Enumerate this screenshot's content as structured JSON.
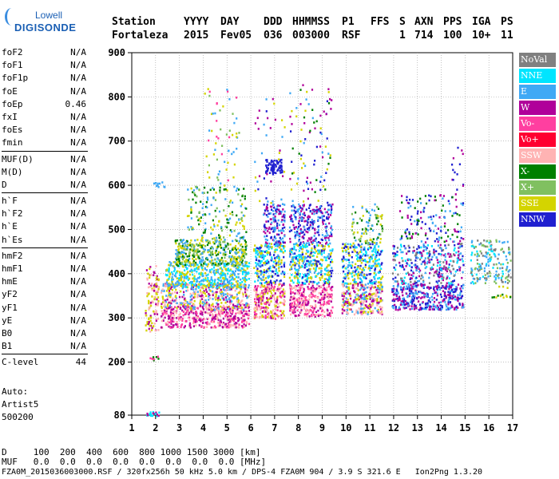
{
  "logo": {
    "line1": "Lowell",
    "line2": "DIGISONDE"
  },
  "header": {
    "labels": [
      "Station",
      "YYYY",
      "DAY",
      "DDD",
      "HHMMSS",
      "P1",
      "FFS",
      "S",
      "AXN",
      "PPS",
      "IGA",
      "PS"
    ],
    "values": [
      "Fortaleza",
      "2015",
      "Fev05",
      "036",
      "003000",
      "RSF",
      "1",
      "714",
      "100",
      "10+",
      "11"
    ]
  },
  "params": {
    "group1": [
      {
        "name": "foF2",
        "value": "N/A"
      },
      {
        "name": "foF1",
        "value": "N/A"
      },
      {
        "name": "foF1p",
        "value": "N/A"
      },
      {
        "name": "foE",
        "value": "N/A"
      },
      {
        "name": "foEp",
        "value": "0.46"
      },
      {
        "name": "fxI",
        "value": "N/A"
      },
      {
        "name": "foEs",
        "value": "N/A"
      },
      {
        "name": "fmin",
        "value": "N/A"
      }
    ],
    "group2": [
      {
        "name": "MUF(D)",
        "value": "N/A"
      },
      {
        "name": "M(D)",
        "value": "N/A"
      },
      {
        "name": "D",
        "value": "N/A"
      }
    ],
    "group3": [
      {
        "name": "h`F",
        "value": "N/A"
      },
      {
        "name": "h`F2",
        "value": "N/A"
      },
      {
        "name": "h`E",
        "value": "N/A"
      },
      {
        "name": "h`Es",
        "value": "N/A"
      }
    ],
    "group4": [
      {
        "name": "hmF2",
        "value": "N/A"
      },
      {
        "name": "hmF1",
        "value": "N/A"
      },
      {
        "name": "hmE",
        "value": "N/A"
      },
      {
        "name": "yF2",
        "value": "N/A"
      },
      {
        "name": "yF1",
        "value": "N/A"
      },
      {
        "name": "yE",
        "value": "N/A"
      },
      {
        "name": "B0",
        "value": "N/A"
      },
      {
        "name": "B1",
        "value": "N/A"
      }
    ],
    "clevel": {
      "name": "C-level",
      "value": "44"
    }
  },
  "auto": {
    "line1": "Auto:",
    "line2": "Artist5",
    "line3": "500200"
  },
  "legend": [
    {
      "label": "NoVal",
      "color": "#808080"
    },
    {
      "label": "NNE",
      "color": "#00e5ff"
    },
    {
      "label": "E",
      "color": "#3fa9f5"
    },
    {
      "label": "W",
      "color": "#b0009a"
    },
    {
      "label": "Vo-",
      "color": "#ff3fa0"
    },
    {
      "label": "Vo+",
      "color": "#ff0030"
    },
    {
      "label": "SSW",
      "color": "#ffb3b3"
    },
    {
      "label": "X-",
      "color": "#008000"
    },
    {
      "label": "X+",
      "color": "#80c060"
    },
    {
      "label": "SSE",
      "color": "#d4d400"
    },
    {
      "label": "NNW",
      "color": "#2020d0"
    }
  ],
  "footer": {
    "line1": "D     100  200  400  600  800 1000 1500 3000 [km]",
    "line2": "MUF   0.0  0.0  0.0  0.0  0.0  0.0  0.0  0.0 [MHz]",
    "line3": "FZA0M_2015036003000.RSF / 320fx256h 50 kHz 5.0 km / DPS-4 FZA0M 904 / 3.9 S 321.6 E   Ion2Png 1.3.20"
  },
  "chart_data": {
    "type": "scatter",
    "xlim": [
      1,
      17
    ],
    "ylim": [
      80,
      900
    ],
    "xticks": [
      1,
      2,
      3,
      4,
      5,
      6,
      7,
      8,
      9,
      10,
      11,
      12,
      13,
      14,
      15,
      16,
      17
    ],
    "yticks": [
      80,
      200,
      300,
      400,
      500,
      600,
      700,
      800,
      900
    ],
    "grid": "dotted vertical and horizontal",
    "xlabel": "",
    "ylabel": "",
    "clusters": [
      {
        "x": [
          1.55,
          2.1
        ],
        "y": [
          270,
          420
        ],
        "n": 120,
        "colors": [
          "#b0009a",
          "#ffb3b3",
          "#d4d400"
        ]
      },
      {
        "x": [
          1.6,
          2.15
        ],
        "y": [
          80,
          90
        ],
        "n": 20,
        "colors": [
          "#00e5ff",
          "#b0009a"
        ]
      },
      {
        "x": [
          1.7,
          2.1
        ],
        "y": [
          205,
          215
        ],
        "n": 8,
        "colors": [
          "#00e5ff",
          "#008000",
          "#ff3fa0"
        ]
      },
      {
        "x": [
          1.9,
          2.4
        ],
        "y": [
          595,
          610
        ],
        "n": 10,
        "colors": [
          "#3fa9f5"
        ]
      },
      {
        "x": [
          2.2,
          5.9
        ],
        "y": [
          280,
          330
        ],
        "n": 420,
        "colors": [
          "#b0009a",
          "#ffb3b3",
          "#ff3fa0"
        ]
      },
      {
        "x": [
          2.2,
          5.9
        ],
        "y": [
          320,
          380
        ],
        "n": 450,
        "colors": [
          "#ffb3b3",
          "#d4d400",
          "#b0009a",
          "#3fa9f5"
        ]
      },
      {
        "x": [
          2.4,
          5.9
        ],
        "y": [
          370,
          430
        ],
        "n": 480,
        "colors": [
          "#3fa9f5",
          "#d4d400",
          "#00e5ff"
        ]
      },
      {
        "x": [
          2.8,
          5.8
        ],
        "y": [
          420,
          480
        ],
        "n": 380,
        "colors": [
          "#d4d400",
          "#3fa9f5",
          "#008000",
          "#80c060"
        ]
      },
      {
        "x": [
          3.3,
          5.8
        ],
        "y": [
          480,
          600
        ],
        "n": 160,
        "colors": [
          "#3fa9f5",
          "#d4d400",
          "#80c060",
          "#008000"
        ]
      },
      {
        "x": [
          4.0,
          5.5
        ],
        "y": [
          600,
          830
        ],
        "n": 60,
        "colors": [
          "#d4d400",
          "#80c060",
          "#ff3fa0",
          "#3fa9f5"
        ]
      },
      {
        "x": [
          6.1,
          7.4
        ],
        "y": [
          300,
          380
        ],
        "n": 260,
        "colors": [
          "#b0009a",
          "#ffb3b3",
          "#ff3fa0",
          "#d4d400"
        ]
      },
      {
        "x": [
          6.1,
          7.4
        ],
        "y": [
          380,
          470
        ],
        "n": 240,
        "colors": [
          "#3fa9f5",
          "#2020d0",
          "#d4d400",
          "#00e5ff"
        ]
      },
      {
        "x": [
          6.5,
          7.4
        ],
        "y": [
          470,
          560
        ],
        "n": 140,
        "colors": [
          "#2020d0",
          "#3fa9f5",
          "#b0009a"
        ]
      },
      {
        "x": [
          6.6,
          7.3
        ],
        "y": [
          630,
          660
        ],
        "n": 70,
        "colors": [
          "#2020d0"
        ]
      },
      {
        "x": [
          6.1,
          7.4
        ],
        "y": [
          560,
          800
        ],
        "n": 40,
        "colors": [
          "#b0009a",
          "#d4d400",
          "#3fa9f5",
          "#2020d0"
        ]
      },
      {
        "x": [
          7.6,
          9.4
        ],
        "y": [
          305,
          380
        ],
        "n": 300,
        "colors": [
          "#b0009a",
          "#ffb3b3",
          "#ff3fa0"
        ]
      },
      {
        "x": [
          7.6,
          9.4
        ],
        "y": [
          380,
          470
        ],
        "n": 330,
        "colors": [
          "#3fa9f5",
          "#d4d400",
          "#2020d0",
          "#00e5ff"
        ]
      },
      {
        "x": [
          7.6,
          9.4
        ],
        "y": [
          470,
          560
        ],
        "n": 240,
        "colors": [
          "#2020d0",
          "#3fa9f5",
          "#b0009a"
        ]
      },
      {
        "x": [
          7.6,
          9.4
        ],
        "y": [
          560,
          830
        ],
        "n": 90,
        "colors": [
          "#b0009a",
          "#2020d0",
          "#008000",
          "#d4d400",
          "#3fa9f5"
        ]
      },
      {
        "x": [
          9.8,
          11.5
        ],
        "y": [
          310,
          380
        ],
        "n": 300,
        "colors": [
          "#ffb3b3",
          "#d4d400",
          "#b0009a",
          "#3fa9f5"
        ]
      },
      {
        "x": [
          9.8,
          11.5
        ],
        "y": [
          380,
          470
        ],
        "n": 280,
        "colors": [
          "#2020d0",
          "#3fa9f5",
          "#d4d400",
          "#00e5ff"
        ]
      },
      {
        "x": [
          10.2,
          11.5
        ],
        "y": [
          470,
          560
        ],
        "n": 90,
        "colors": [
          "#d4d400",
          "#80c060",
          "#008000",
          "#3fa9f5"
        ]
      },
      {
        "x": [
          11.9,
          14.9
        ],
        "y": [
          320,
          380
        ],
        "n": 380,
        "colors": [
          "#2020d0",
          "#b0009a",
          "#3fa9f5"
        ]
      },
      {
        "x": [
          11.9,
          14.9
        ],
        "y": [
          380,
          470
        ],
        "n": 320,
        "colors": [
          "#3fa9f5",
          "#2020d0",
          "#b0009a",
          "#00e5ff",
          "#808080"
        ]
      },
      {
        "x": [
          12.2,
          14.9
        ],
        "y": [
          470,
          580
        ],
        "n": 140,
        "colors": [
          "#2020d0",
          "#b0009a",
          "#3fa9f5",
          "#008000"
        ]
      },
      {
        "x": [
          14.4,
          14.9
        ],
        "y": [
          580,
          690
        ],
        "n": 15,
        "colors": [
          "#b0009a",
          "#2020d0"
        ]
      },
      {
        "x": [
          15.2,
          16.9
        ],
        "y": [
          380,
          480
        ],
        "n": 180,
        "colors": [
          "#3fa9f5",
          "#00e5ff",
          "#808080",
          "#80c060"
        ]
      },
      {
        "x": [
          16.1,
          16.9
        ],
        "y": [
          345,
          375
        ],
        "n": 15,
        "colors": [
          "#008000",
          "#d4d400"
        ]
      }
    ]
  }
}
